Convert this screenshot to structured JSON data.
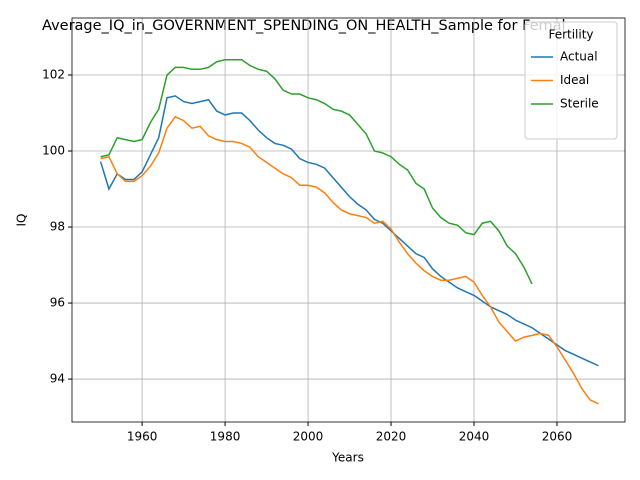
{
  "chart_data": {
    "type": "line",
    "title": "Average_IQ_in_GOVERNMENT_SPENDING_ON_HEALTH_Sample for Femal",
    "x_label": "Years",
    "y_label": "IQ",
    "x": [
      1950,
      1952,
      1954,
      1956,
      1958,
      1960,
      1962,
      1964,
      1966,
      1968,
      1970,
      1972,
      1974,
      1976,
      1978,
      1980,
      1982,
      1984,
      1986,
      1988,
      1990,
      1992,
      1994,
      1996,
      1998,
      2000,
      2002,
      2004,
      2006,
      2008,
      2010,
      2012,
      2014,
      2016,
      2018,
      2020,
      2022,
      2024,
      2026,
      2028,
      2030,
      2032,
      2034,
      2036,
      2038,
      2040,
      2042,
      2044,
      2046,
      2048,
      2050,
      2052,
      2054,
      2056,
      2058,
      2060,
      2062,
      2064,
      2066,
      2068,
      2070
    ],
    "series": [
      {
        "name": "Actual",
        "color": "#1f77b4",
        "values": [
          99.72,
          99.0,
          99.4,
          99.25,
          99.25,
          99.45,
          99.9,
          100.35,
          101.4,
          101.45,
          101.3,
          101.25,
          101.3,
          101.35,
          101.05,
          100.95,
          101.0,
          101.0,
          100.8,
          100.55,
          100.35,
          100.2,
          100.15,
          100.05,
          99.8,
          99.7,
          99.65,
          99.55,
          99.3,
          99.05,
          98.8,
          98.6,
          98.45,
          98.2,
          98.1,
          97.9,
          97.7,
          97.5,
          97.3,
          97.2,
          96.9,
          96.7,
          96.55,
          96.4,
          96.3,
          96.2,
          96.05,
          95.9,
          95.8,
          95.7,
          95.55,
          95.45,
          95.35,
          95.2,
          95.05,
          94.9,
          94.75,
          94.65,
          94.55,
          94.45,
          94.35
        ]
      },
      {
        "name": "Ideal",
        "color": "#ff7f0e",
        "values": [
          99.8,
          99.85,
          99.4,
          99.2,
          99.2,
          99.35,
          99.6,
          99.95,
          100.6,
          100.9,
          100.8,
          100.6,
          100.65,
          100.4,
          100.3,
          100.25,
          100.25,
          100.2,
          100.1,
          99.85,
          99.7,
          99.55,
          99.4,
          99.3,
          99.1,
          99.1,
          99.05,
          98.9,
          98.65,
          98.45,
          98.35,
          98.3,
          98.25,
          98.1,
          98.15,
          97.95,
          97.6,
          97.3,
          97.05,
          96.85,
          96.7,
          96.6,
          96.6,
          96.65,
          96.7,
          96.55,
          96.2,
          95.9,
          95.5,
          95.25,
          95.0,
          95.1,
          95.15,
          95.2,
          95.15,
          94.85,
          94.5,
          94.15,
          93.75,
          93.45,
          93.35
        ]
      },
      {
        "name": "Sterile",
        "color": "#2ca02c",
        "values": [
          99.85,
          99.9,
          100.35,
          100.3,
          100.25,
          100.3,
          100.75,
          101.1,
          102.0,
          102.2,
          102.2,
          102.15,
          102.15,
          102.2,
          102.35,
          102.4,
          102.4,
          102.4,
          102.25,
          102.15,
          102.1,
          101.9,
          101.6,
          101.5,
          101.5,
          101.4,
          101.35,
          101.25,
          101.1,
          101.05,
          100.95,
          100.7,
          100.45,
          100.0,
          99.95,
          99.85,
          99.65,
          99.5,
          99.15,
          99.0,
          98.5,
          98.25,
          98.1,
          98.05,
          97.85,
          97.8,
          98.1,
          98.15,
          97.9,
          97.5,
          97.3,
          96.95,
          96.5,
          null,
          null,
          null,
          null,
          null,
          null,
          null,
          null
        ]
      }
    ],
    "xlim": [
      1943.1,
      2076.4
    ],
    "ylim": [
      92.87,
      103.5
    ],
    "xticks": [
      1960,
      1980,
      2000,
      2020,
      2040,
      2060
    ],
    "yticks": [
      94,
      96,
      98,
      100,
      102
    ],
    "grid": true,
    "legend_title": "Fertility",
    "legend_position": "upper right"
  }
}
